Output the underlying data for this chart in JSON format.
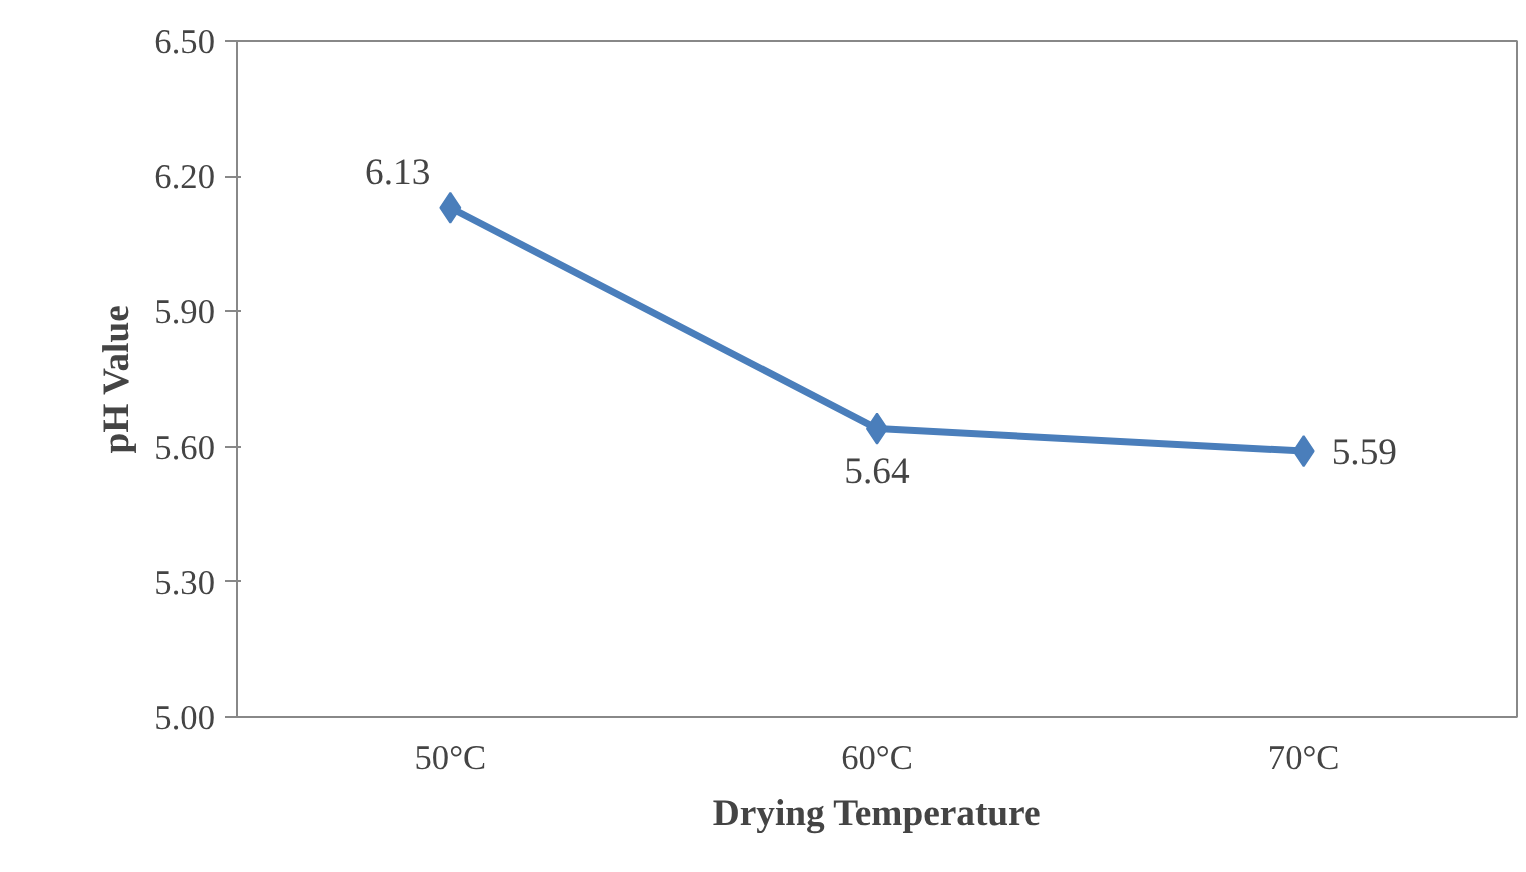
{
  "chart_data": {
    "type": "line",
    "xlabel": "Drying Temperature",
    "ylabel": "pH Value",
    "categories": [
      "50°C",
      "60°C",
      "70°C"
    ],
    "series": [
      {
        "color": "#4a7ebb",
        "values": [
          6.13,
          5.64,
          5.59
        ]
      }
    ],
    "ylim": [
      5.0,
      6.5
    ],
    "yticks": [
      {
        "value": 5.0,
        "label": "5.00"
      },
      {
        "value": 5.3,
        "label": "5.30"
      },
      {
        "value": 5.6,
        "label": "5.60"
      },
      {
        "value": 5.9,
        "label": "5.90"
      },
      {
        "value": 6.2,
        "label": "6.20"
      },
      {
        "value": 6.5,
        "label": "6.50"
      }
    ],
    "data_labels": true,
    "marker": "diamond",
    "line_style": "solid",
    "grid": false
  }
}
